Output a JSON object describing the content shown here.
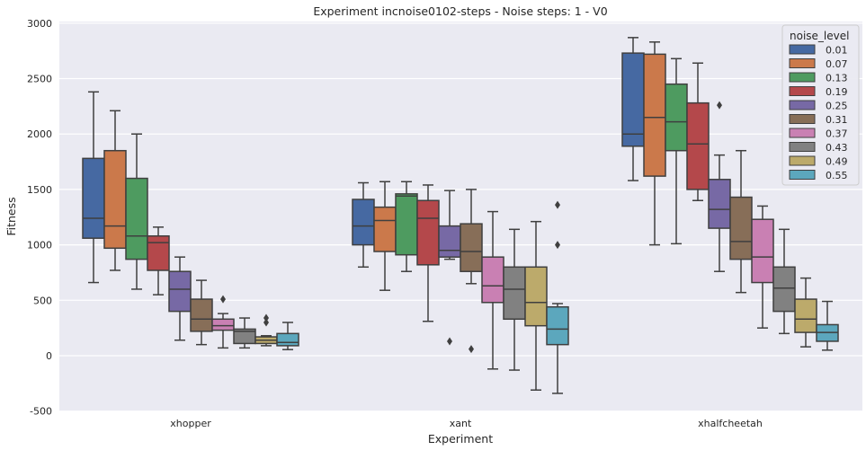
{
  "chart_data": {
    "type": "box",
    "title": "Experiment incnoise0102-steps - Noise steps: 1 - V0",
    "xlabel": "Experiment",
    "ylabel": "Fitness",
    "ylim": [
      -500,
      3000
    ],
    "yticks": [
      -500,
      0,
      500,
      1000,
      1500,
      2000,
      2500,
      3000
    ],
    "grid": true,
    "legend_title": "noise_level",
    "legend_position": "top-right",
    "categories": [
      "xhopper",
      "xant",
      "xhalfcheetah"
    ],
    "series": [
      {
        "name": "0.01",
        "color": "#4c72b0",
        "boxes": [
          {
            "min": 660,
            "q1": 1060,
            "median": 1240,
            "q3": 1780,
            "max": 2380,
            "outliers": []
          },
          {
            "min": 800,
            "q1": 1000,
            "median": 1170,
            "q3": 1410,
            "max": 1560,
            "outliers": []
          },
          {
            "min": 1580,
            "q1": 1890,
            "median": 2000,
            "q3": 2730,
            "max": 2870,
            "outliers": []
          }
        ]
      },
      {
        "name": "0.07",
        "color": "#dd8452",
        "boxes": [
          {
            "min": 770,
            "q1": 970,
            "median": 1170,
            "q3": 1850,
            "max": 2210,
            "outliers": []
          },
          {
            "min": 590,
            "q1": 940,
            "median": 1220,
            "q3": 1340,
            "max": 1570,
            "outliers": []
          },
          {
            "min": 1000,
            "q1": 1620,
            "median": 2150,
            "q3": 2720,
            "max": 2830,
            "outliers": []
          }
        ]
      },
      {
        "name": "0.13",
        "color": "#55a868",
        "boxes": [
          {
            "min": 600,
            "q1": 870,
            "median": 1080,
            "q3": 1600,
            "max": 2000,
            "outliers": []
          },
          {
            "min": 760,
            "q1": 910,
            "median": 1440,
            "q3": 1460,
            "max": 1570,
            "outliers": []
          },
          {
            "min": 1010,
            "q1": 1850,
            "median": 2110,
            "q3": 2450,
            "max": 2680,
            "outliers": []
          }
        ]
      },
      {
        "name": "0.19",
        "color": "#c44e52",
        "boxes": [
          {
            "min": 550,
            "q1": 770,
            "median": 1020,
            "q3": 1080,
            "max": 1160,
            "outliers": []
          },
          {
            "min": 310,
            "q1": 820,
            "median": 1240,
            "q3": 1400,
            "max": 1540,
            "outliers": []
          },
          {
            "min": 1400,
            "q1": 1500,
            "median": 1910,
            "q3": 2280,
            "max": 2640,
            "outliers": []
          }
        ]
      },
      {
        "name": "0.25",
        "color": "#8172b3",
        "boxes": [
          {
            "min": 140,
            "q1": 400,
            "median": 600,
            "q3": 760,
            "max": 890,
            "outliers": []
          },
          {
            "min": 870,
            "q1": 890,
            "median": 950,
            "q3": 1170,
            "max": 1490,
            "outliers": [
              130
            ]
          },
          {
            "min": 760,
            "q1": 1150,
            "median": 1320,
            "q3": 1590,
            "max": 1810,
            "outliers": [
              2260
            ]
          }
        ]
      },
      {
        "name": "0.31",
        "color": "#937860",
        "boxes": [
          {
            "min": 100,
            "q1": 220,
            "median": 330,
            "q3": 510,
            "max": 680,
            "outliers": []
          },
          {
            "min": 650,
            "q1": 760,
            "median": 940,
            "q3": 1190,
            "max": 1500,
            "outliers": [
              60
            ]
          },
          {
            "min": 570,
            "q1": 870,
            "median": 1030,
            "q3": 1430,
            "max": 1850,
            "outliers": []
          }
        ]
      },
      {
        "name": "0.37",
        "color": "#da8bc3",
        "boxes": [
          {
            "min": 70,
            "q1": 230,
            "median": 270,
            "q3": 330,
            "max": 380,
            "outliers": [
              510
            ]
          },
          {
            "min": -120,
            "q1": 480,
            "median": 630,
            "q3": 890,
            "max": 1300,
            "outliers": []
          },
          {
            "min": 250,
            "q1": 660,
            "median": 890,
            "q3": 1230,
            "max": 1350,
            "outliers": []
          }
        ]
      },
      {
        "name": "0.43",
        "color": "#8c8c8c",
        "boxes": [
          {
            "min": 70,
            "q1": 110,
            "median": 220,
            "q3": 240,
            "max": 340,
            "outliers": []
          },
          {
            "min": -130,
            "q1": 330,
            "median": 600,
            "q3": 800,
            "max": 1140,
            "outliers": []
          },
          {
            "min": 200,
            "q1": 400,
            "median": 610,
            "q3": 800,
            "max": 1140,
            "outliers": []
          }
        ]
      },
      {
        "name": "0.49",
        "color": "#ccb974",
        "boxes": [
          {
            "min": 90,
            "q1": 110,
            "median": 140,
            "q3": 170,
            "max": 180,
            "outliers": [
              340,
              300
            ]
          },
          {
            "min": -310,
            "q1": 270,
            "median": 480,
            "q3": 800,
            "max": 1210,
            "outliers": []
          },
          {
            "min": 80,
            "q1": 210,
            "median": 330,
            "q3": 510,
            "max": 700,
            "outliers": []
          }
        ]
      },
      {
        "name": "0.55",
        "color": "#64b5cd",
        "boxes": [
          {
            "min": 55,
            "q1": 90,
            "median": 120,
            "q3": 200,
            "max": 300,
            "outliers": []
          },
          {
            "min": -340,
            "q1": 100,
            "median": 240,
            "q3": 440,
            "max": 470,
            "outliers": [
              1360,
              1000
            ]
          },
          {
            "min": 50,
            "q1": 130,
            "median": 210,
            "q3": 280,
            "max": 490,
            "outliers": []
          }
        ]
      }
    ]
  }
}
